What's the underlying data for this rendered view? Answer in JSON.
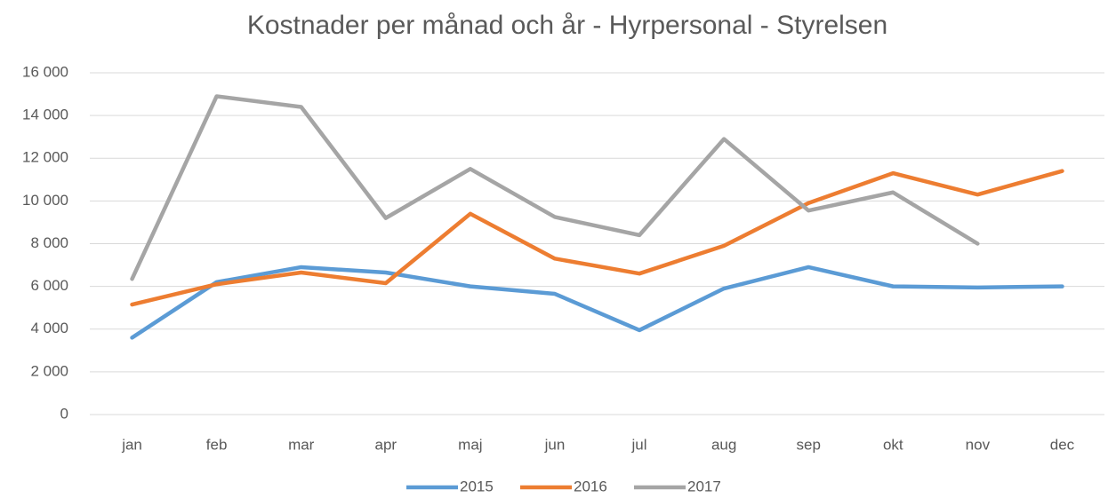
{
  "chart_data": {
    "type": "line",
    "title": "Kostnader per månad och år - Hyrpersonal - Styrelsen",
    "categories": [
      "jan",
      "feb",
      "mar",
      "apr",
      "maj",
      "jun",
      "jul",
      "aug",
      "sep",
      "okt",
      "nov",
      "dec"
    ],
    "series": [
      {
        "name": "2015",
        "color": "#5b9bd5",
        "values": [
          3600,
          6200,
          6900,
          6650,
          6000,
          5650,
          3950,
          5900,
          6900,
          6000,
          5950,
          6000
        ]
      },
      {
        "name": "2016",
        "color": "#ed7d31",
        "values": [
          5150,
          6100,
          6650,
          6150,
          9400,
          7300,
          6600,
          7900,
          9900,
          11300,
          10300,
          11400
        ]
      },
      {
        "name": "2017",
        "color": "#a5a5a5",
        "values": [
          6350,
          14900,
          14400,
          9200,
          11500,
          9250,
          8400,
          12900,
          9550,
          10400,
          8000,
          null
        ]
      }
    ],
    "ylim": [
      0,
      16000
    ],
    "yticks": [
      0,
      {
        "value": 2000,
        "label": "2 000"
      },
      {
        "value": 4000,
        "label": "4 000"
      },
      {
        "value": 6000,
        "label": "6 000"
      },
      {
        "value": 8000,
        "label": "8 000"
      },
      {
        "value": 10000,
        "label": "10 000"
      },
      {
        "value": 12000,
        "label": "12 000"
      },
      {
        "value": 14000,
        "label": "14 000"
      },
      {
        "value": 16000,
        "label": "16 000"
      }
    ],
    "grid": true,
    "legend": "bottom"
  }
}
